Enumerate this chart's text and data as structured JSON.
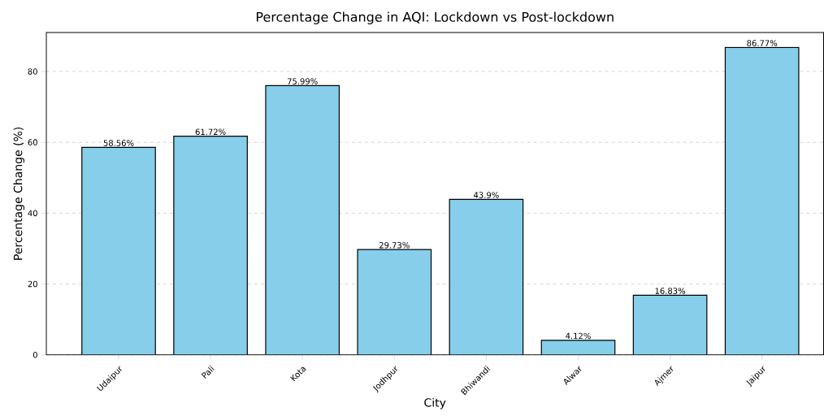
{
  "chart_data": {
    "type": "bar",
    "title": "Percentage Change in AQI: Lockdown vs Post-lockdown",
    "xlabel": "City",
    "ylabel": "Percentage Change (%)",
    "categories": [
      "Udaipur",
      "Pali",
      "Kota",
      "Jodhpur",
      "Bhiwandi",
      "Alwar",
      "Ajmer",
      "Jaipur"
    ],
    "values": [
      58.56,
      61.72,
      75.99,
      29.73,
      43.9,
      4.12,
      16.83,
      86.77
    ],
    "value_labels": [
      "58.56%",
      "61.72%",
      "75.99%",
      "29.73%",
      "43.9%",
      "4.12%",
      "16.83%",
      "86.77%"
    ],
    "color": "#87ceeb",
    "ylim": [
      0,
      91
    ],
    "yticks": [
      0,
      20,
      40,
      60,
      80
    ],
    "grid": "y"
  }
}
